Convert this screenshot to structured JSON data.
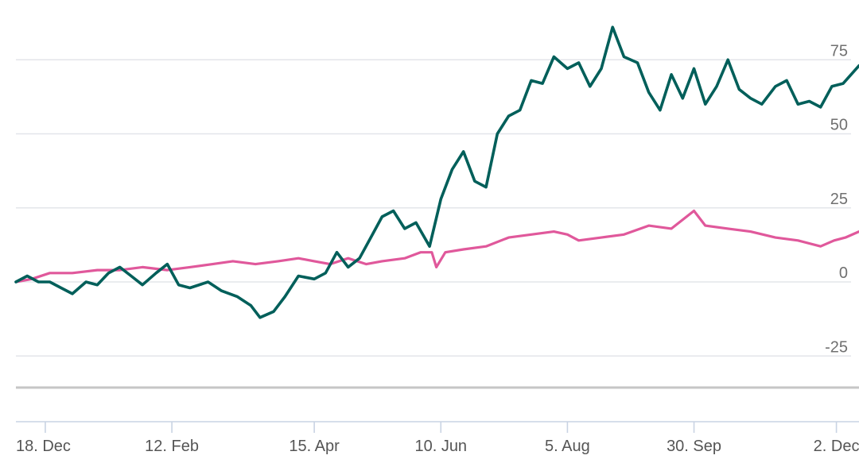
{
  "chart_data": {
    "type": "line",
    "title": "",
    "xlabel": "",
    "ylabel": "",
    "x_range": [
      "2023-12-05",
      "2024-12-12"
    ],
    "ylim": [
      -30,
      88
    ],
    "y_ticks": [
      {
        "value": 75,
        "label": "75"
      },
      {
        "value": 50,
        "label": "50"
      },
      {
        "value": 25,
        "label": "25"
      },
      {
        "value": 0,
        "label": "0"
      },
      {
        "value": -25,
        "label": "-25"
      }
    ],
    "x_ticks": [
      {
        "date": "2023-12-18",
        "label": "18. Dec"
      },
      {
        "date": "2024-02-12",
        "label": "12. Feb"
      },
      {
        "date": "2024-04-15",
        "label": "15. Apr"
      },
      {
        "date": "2024-06-10",
        "label": "10. Jun"
      },
      {
        "date": "2024-08-05",
        "label": "5. Aug"
      },
      {
        "date": "2024-09-30",
        "label": "30. Sep"
      },
      {
        "date": "2024-12-02",
        "label": "2. Dec"
      }
    ],
    "grid": true,
    "legend": "none",
    "series": [
      {
        "color": "#005f5a",
        "points": [
          [
            "2023-12-05",
            0
          ],
          [
            "2023-12-10",
            2
          ],
          [
            "2023-12-15",
            0
          ],
          [
            "2023-12-20",
            0
          ],
          [
            "2023-12-25",
            -2
          ],
          [
            "2023-12-30",
            -4
          ],
          [
            "2024-01-05",
            0
          ],
          [
            "2024-01-10",
            -1
          ],
          [
            "2024-01-15",
            3
          ],
          [
            "2024-01-20",
            5
          ],
          [
            "2024-01-25",
            2
          ],
          [
            "2024-01-30",
            -1
          ],
          [
            "2024-02-05",
            3
          ],
          [
            "2024-02-10",
            6
          ],
          [
            "2024-02-15",
            -1
          ],
          [
            "2024-02-20",
            -2
          ],
          [
            "2024-02-28",
            0
          ],
          [
            "2024-03-05",
            -3
          ],
          [
            "2024-03-12",
            -5
          ],
          [
            "2024-03-18",
            -8
          ],
          [
            "2024-03-22",
            -12
          ],
          [
            "2024-03-28",
            -10
          ],
          [
            "2024-04-02",
            -5
          ],
          [
            "2024-04-08",
            2
          ],
          [
            "2024-04-15",
            1
          ],
          [
            "2024-04-20",
            3
          ],
          [
            "2024-04-25",
            10
          ],
          [
            "2024-04-30",
            5
          ],
          [
            "2024-05-05",
            8
          ],
          [
            "2024-05-10",
            15
          ],
          [
            "2024-05-15",
            22
          ],
          [
            "2024-05-20",
            24
          ],
          [
            "2024-05-25",
            18
          ],
          [
            "2024-05-30",
            20
          ],
          [
            "2024-06-05",
            12
          ],
          [
            "2024-06-10",
            28
          ],
          [
            "2024-06-15",
            38
          ],
          [
            "2024-06-20",
            44
          ],
          [
            "2024-06-25",
            34
          ],
          [
            "2024-06-30",
            32
          ],
          [
            "2024-07-05",
            50
          ],
          [
            "2024-07-10",
            56
          ],
          [
            "2024-07-15",
            58
          ],
          [
            "2024-07-20",
            68
          ],
          [
            "2024-07-25",
            67
          ],
          [
            "2024-07-30",
            76
          ],
          [
            "2024-08-05",
            72
          ],
          [
            "2024-08-10",
            74
          ],
          [
            "2024-08-15",
            66
          ],
          [
            "2024-08-20",
            72
          ],
          [
            "2024-08-25",
            86
          ],
          [
            "2024-08-30",
            76
          ],
          [
            "2024-09-05",
            74
          ],
          [
            "2024-09-10",
            64
          ],
          [
            "2024-09-15",
            58
          ],
          [
            "2024-09-20",
            70
          ],
          [
            "2024-09-25",
            62
          ],
          [
            "2024-09-30",
            72
          ],
          [
            "2024-10-05",
            60
          ],
          [
            "2024-10-10",
            66
          ],
          [
            "2024-10-15",
            75
          ],
          [
            "2024-10-20",
            65
          ],
          [
            "2024-10-25",
            62
          ],
          [
            "2024-10-30",
            60
          ],
          [
            "2024-11-05",
            66
          ],
          [
            "2024-11-10",
            68
          ],
          [
            "2024-11-15",
            60
          ],
          [
            "2024-11-20",
            61
          ],
          [
            "2024-11-25",
            59
          ],
          [
            "2024-11-30",
            66
          ],
          [
            "2024-12-05",
            67
          ],
          [
            "2024-12-12",
            73
          ]
        ]
      },
      {
        "color": "#e0589b",
        "points": [
          [
            "2023-12-05",
            0
          ],
          [
            "2023-12-12",
            1
          ],
          [
            "2023-12-20",
            3
          ],
          [
            "2023-12-30",
            3
          ],
          [
            "2024-01-10",
            4
          ],
          [
            "2024-01-20",
            4
          ],
          [
            "2024-01-30",
            5
          ],
          [
            "2024-02-10",
            4
          ],
          [
            "2024-02-20",
            5
          ],
          [
            "2024-03-01",
            6
          ],
          [
            "2024-03-10",
            7
          ],
          [
            "2024-03-20",
            6
          ],
          [
            "2024-03-30",
            7
          ],
          [
            "2024-04-08",
            8
          ],
          [
            "2024-04-15",
            7
          ],
          [
            "2024-04-22",
            6
          ],
          [
            "2024-04-30",
            8
          ],
          [
            "2024-05-08",
            6
          ],
          [
            "2024-05-15",
            7
          ],
          [
            "2024-05-25",
            8
          ],
          [
            "2024-06-01",
            10
          ],
          [
            "2024-06-06",
            10
          ],
          [
            "2024-06-08",
            5
          ],
          [
            "2024-06-12",
            10
          ],
          [
            "2024-06-20",
            11
          ],
          [
            "2024-06-30",
            12
          ],
          [
            "2024-07-10",
            15
          ],
          [
            "2024-07-20",
            16
          ],
          [
            "2024-07-30",
            17
          ],
          [
            "2024-08-05",
            16
          ],
          [
            "2024-08-10",
            14
          ],
          [
            "2024-08-20",
            15
          ],
          [
            "2024-08-30",
            16
          ],
          [
            "2024-09-10",
            19
          ],
          [
            "2024-09-20",
            18
          ],
          [
            "2024-09-30",
            24
          ],
          [
            "2024-10-05",
            19
          ],
          [
            "2024-10-15",
            18
          ],
          [
            "2024-10-25",
            17
          ],
          [
            "2024-11-05",
            15
          ],
          [
            "2024-11-15",
            14
          ],
          [
            "2024-11-25",
            12
          ],
          [
            "2024-12-01",
            14
          ],
          [
            "2024-12-06",
            15
          ],
          [
            "2024-12-12",
            17
          ]
        ]
      }
    ]
  }
}
